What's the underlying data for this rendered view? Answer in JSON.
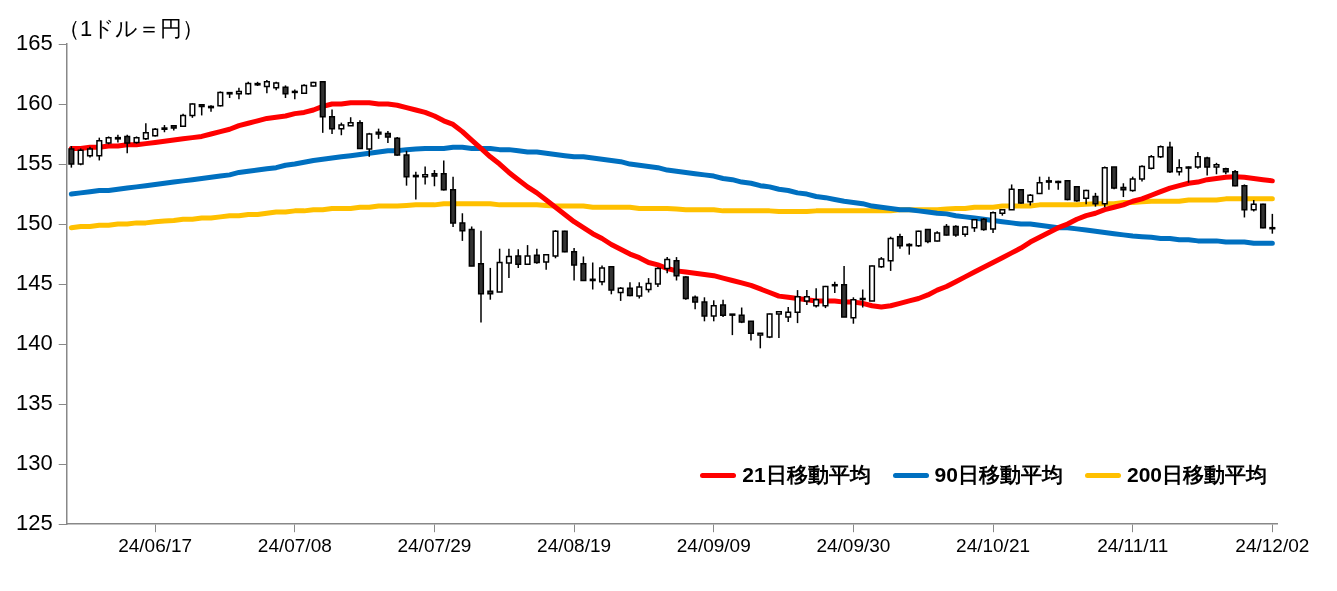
{
  "chart_data": {
    "type": "candlestick",
    "ylabel": "（1ドル＝円）",
    "categories": [
      null,
      null,
      null,
      null,
      null,
      null,
      null,
      null,
      null,
      "24/06/17",
      null,
      null,
      null,
      null,
      null,
      null,
      null,
      null,
      null,
      null,
      null,
      null,
      null,
      null,
      "24/07/08",
      null,
      null,
      null,
      null,
      null,
      null,
      null,
      null,
      null,
      null,
      null,
      null,
      null,
      null,
      "24/07/29",
      null,
      null,
      null,
      null,
      null,
      null,
      null,
      null,
      null,
      null,
      null,
      null,
      null,
      null,
      "24/08/19",
      null,
      null,
      null,
      null,
      null,
      null,
      null,
      null,
      null,
      null,
      null,
      null,
      null,
      null,
      "24/09/09",
      null,
      null,
      null,
      null,
      null,
      null,
      null,
      null,
      null,
      null,
      null,
      null,
      null,
      null,
      "24/09/30",
      null,
      null,
      null,
      null,
      null,
      null,
      null,
      null,
      null,
      null,
      null,
      null,
      null,
      null,
      "24/10/21",
      null,
      null,
      null,
      null,
      null,
      null,
      null,
      null,
      null,
      null,
      null,
      null,
      null,
      null,
      "24/11/11",
      null,
      null,
      null,
      null,
      null,
      null,
      null,
      null,
      null,
      null,
      null,
      null,
      null,
      null,
      "24/12/02"
    ],
    "ohlc": [
      [
        156.25,
        156.5,
        154.7,
        155.0
      ],
      [
        155.0,
        156.3,
        154.9,
        156.15
      ],
      [
        155.7,
        156.45,
        155.55,
        156.25
      ],
      [
        155.7,
        157.2,
        155.3,
        156.95
      ],
      [
        156.75,
        157.3,
        156.65,
        157.2
      ],
      [
        157.1,
        157.45,
        156.8,
        157.2
      ],
      [
        157.3,
        157.45,
        155.9,
        156.75
      ],
      [
        156.8,
        157.3,
        156.7,
        157.2
      ],
      [
        157.1,
        158.4,
        157.0,
        157.6
      ],
      [
        157.35,
        158.0,
        157.3,
        157.9
      ],
      [
        158.0,
        158.25,
        157.65,
        157.9
      ],
      [
        158.2,
        158.25,
        157.8,
        158.0
      ],
      [
        158.15,
        159.2,
        158.1,
        159.05
      ],
      [
        159.05,
        160.05,
        158.85,
        160.0
      ],
      [
        159.95,
        160.0,
        159.05,
        159.8
      ],
      [
        159.8,
        159.9,
        159.35,
        159.7
      ],
      [
        159.85,
        161.05,
        159.8,
        160.95
      ],
      [
        160.95,
        160.95,
        160.5,
        160.85
      ],
      [
        160.85,
        161.35,
        160.4,
        161.05
      ],
      [
        160.85,
        161.85,
        160.8,
        161.7
      ],
      [
        161.6,
        161.85,
        161.5,
        161.7
      ],
      [
        161.45,
        162.0,
        160.9,
        161.85
      ],
      [
        161.35,
        161.85,
        161.15,
        161.75
      ],
      [
        161.4,
        161.55,
        160.5,
        160.85
      ],
      [
        161.0,
        161.2,
        160.4,
        161.05
      ],
      [
        160.9,
        161.65,
        160.85,
        161.55
      ],
      [
        161.5,
        161.85,
        161.45,
        161.8
      ],
      [
        161.85,
        161.85,
        157.6,
        158.95
      ],
      [
        158.95,
        159.55,
        157.5,
        157.95
      ],
      [
        157.95,
        158.45,
        157.4,
        158.25
      ],
      [
        158.2,
        158.9,
        158.2,
        158.45
      ],
      [
        158.45,
        158.65,
        156.25,
        156.3
      ],
      [
        156.25,
        157.6,
        155.6,
        157.5
      ],
      [
        157.65,
        157.95,
        157.1,
        157.5
      ],
      [
        157.55,
        157.75,
        156.75,
        157.25
      ],
      [
        157.15,
        157.25,
        155.7,
        155.75
      ],
      [
        155.75,
        156.1,
        153.2,
        153.95
      ],
      [
        154.05,
        154.35,
        152.05,
        153.95
      ],
      [
        153.95,
        154.8,
        153.3,
        154.1
      ],
      [
        154.2,
        154.5,
        153.15,
        154.0
      ],
      [
        154.2,
        155.3,
        152.8,
        152.85
      ],
      [
        152.85,
        153.95,
        149.75,
        150.1
      ],
      [
        150.1,
        150.9,
        148.6,
        149.45
      ],
      [
        149.55,
        149.8,
        146.5,
        146.5
      ],
      [
        146.7,
        149.45,
        141.8,
        144.2
      ],
      [
        144.4,
        146.35,
        143.7,
        144.2
      ],
      [
        144.35,
        147.95,
        144.35,
        146.8
      ],
      [
        146.75,
        147.95,
        145.5,
        147.3
      ],
      [
        147.35,
        147.9,
        146.35,
        146.65
      ],
      [
        146.65,
        148.25,
        146.6,
        147.35
      ],
      [
        147.4,
        147.95,
        146.7,
        146.8
      ],
      [
        146.85,
        147.5,
        146.2,
        147.45
      ],
      [
        147.35,
        149.5,
        147.15,
        149.4
      ],
      [
        149.4,
        149.45,
        147.65,
        147.7
      ],
      [
        147.7,
        148.0,
        145.3,
        146.6
      ],
      [
        146.7,
        147.3,
        145.3,
        145.3
      ],
      [
        145.4,
        146.8,
        144.55,
        145.3
      ],
      [
        145.2,
        146.55,
        144.9,
        146.35
      ],
      [
        146.45,
        146.5,
        144.15,
        144.5
      ],
      [
        144.3,
        144.75,
        143.6,
        144.65
      ],
      [
        144.65,
        145.15,
        143.98,
        144.05
      ],
      [
        144.0,
        145.15,
        143.8,
        144.75
      ],
      [
        144.55,
        145.5,
        144.3,
        145.05
      ],
      [
        145.0,
        146.4,
        144.75,
        146.3
      ],
      [
        146.3,
        147.25,
        145.9,
        147.05
      ],
      [
        146.95,
        147.25,
        145.3,
        145.7
      ],
      [
        145.6,
        145.65,
        143.7,
        143.8
      ],
      [
        143.9,
        144.05,
        142.9,
        143.5
      ],
      [
        143.5,
        143.9,
        141.9,
        142.35
      ],
      [
        142.35,
        143.65,
        141.9,
        143.2
      ],
      [
        143.25,
        143.7,
        142.25,
        142.4
      ],
      [
        142.5,
        142.5,
        140.75,
        142.45
      ],
      [
        142.4,
        143.05,
        141.75,
        141.85
      ],
      [
        141.9,
        141.9,
        140.3,
        140.9
      ],
      [
        140.75,
        140.9,
        139.65,
        140.9
      ],
      [
        140.6,
        142.55,
        140.5,
        142.5
      ],
      [
        142.5,
        142.7,
        140.5,
        142.7
      ],
      [
        142.25,
        143.1,
        141.85,
        142.65
      ],
      [
        142.65,
        144.5,
        141.75,
        143.95
      ],
      [
        143.6,
        144.5,
        143.25,
        143.95
      ],
      [
        143.2,
        144.65,
        143.05,
        143.7
      ],
      [
        143.2,
        144.85,
        143.0,
        144.8
      ],
      [
        144.9,
        145.2,
        144.25,
        144.95
      ],
      [
        144.95,
        146.5,
        142.25,
        142.25
      ],
      [
        142.2,
        143.9,
        141.7,
        143.7
      ],
      [
        143.75,
        144.55,
        143.05,
        143.8
      ],
      [
        143.6,
        146.55,
        143.6,
        146.5
      ],
      [
        146.45,
        147.25,
        146.35,
        147.1
      ],
      [
        146.95,
        148.95,
        146.1,
        148.8
      ],
      [
        148.95,
        149.2,
        147.95,
        148.2
      ],
      [
        148.3,
        148.4,
        147.45,
        148.2
      ],
      [
        148.2,
        149.45,
        148.1,
        149.4
      ],
      [
        149.55,
        149.6,
        148.4,
        148.55
      ],
      [
        148.6,
        149.4,
        148.55,
        149.25
      ],
      [
        149.8,
        150.0,
        149.05,
        149.1
      ],
      [
        149.8,
        149.9,
        148.95,
        149.1
      ],
      [
        149.15,
        149.85,
        148.95,
        149.75
      ],
      [
        149.7,
        150.4,
        149.35,
        150.35
      ],
      [
        150.4,
        150.5,
        149.45,
        149.55
      ],
      [
        149.6,
        151.05,
        149.25,
        150.95
      ],
      [
        150.9,
        151.25,
        150.7,
        151.2
      ],
      [
        151.2,
        153.3,
        151.2,
        152.9
      ],
      [
        152.85,
        152.85,
        151.7,
        151.75
      ],
      [
        151.85,
        152.5,
        151.55,
        152.4
      ],
      [
        152.55,
        153.95,
        152.5,
        153.45
      ],
      [
        153.5,
        153.95,
        152.85,
        153.6
      ],
      [
        153.55,
        153.6,
        152.85,
        153.5
      ],
      [
        153.6,
        153.65,
        151.98,
        152.05
      ],
      [
        153.1,
        153.15,
        151.85,
        151.95
      ],
      [
        152.15,
        152.85,
        151.65,
        152.8
      ],
      [
        152.3,
        152.6,
        151.45,
        151.7
      ],
      [
        151.7,
        154.8,
        151.4,
        154.7
      ],
      [
        154.75,
        154.75,
        152.9,
        153.0
      ],
      [
        153.05,
        153.4,
        152.25,
        152.85
      ],
      [
        152.8,
        153.95,
        152.7,
        153.75
      ],
      [
        153.75,
        154.9,
        153.55,
        154.8
      ],
      [
        154.65,
        155.75,
        154.55,
        155.6
      ],
      [
        155.6,
        156.55,
        155.5,
        156.45
      ],
      [
        156.4,
        156.85,
        154.25,
        154.35
      ],
      [
        154.35,
        155.4,
        154.05,
        154.7
      ],
      [
        154.75,
        154.8,
        153.45,
        154.7
      ],
      [
        154.75,
        156.0,
        154.6,
        155.6
      ],
      [
        155.5,
        155.6,
        154.05,
        154.75
      ],
      [
        154.75,
        155.1,
        154.15,
        154.95
      ],
      [
        154.6,
        154.7,
        154.15,
        154.35
      ],
      [
        154.35,
        154.5,
        153.15,
        153.2
      ],
      [
        153.2,
        153.3,
        150.55,
        151.2
      ],
      [
        151.2,
        152.0,
        151.05,
        151.65
      ],
      [
        151.65,
        151.7,
        149.65,
        149.7
      ],
      [
        149.7,
        150.85,
        149.2,
        149.65
      ]
    ],
    "series": [
      {
        "name": "21日移動平均",
        "type": "line",
        "color": "#ff0000",
        "values": [
          156.3,
          156.3,
          156.4,
          156.4,
          156.5,
          156.5,
          156.6,
          156.6,
          156.7,
          156.8,
          156.9,
          157.0,
          157.1,
          157.2,
          157.3,
          157.5,
          157.7,
          157.9,
          158.2,
          158.4,
          158.6,
          158.8,
          158.9,
          159.0,
          159.2,
          159.3,
          159.5,
          159.8,
          160.0,
          160.0,
          160.1,
          160.1,
          160.1,
          160.0,
          160.0,
          159.9,
          159.7,
          159.5,
          159.3,
          159.0,
          158.6,
          158.3,
          157.7,
          157.0,
          156.3,
          155.6,
          155.0,
          154.3,
          153.7,
          153.1,
          152.6,
          152.0,
          151.4,
          150.8,
          150.2,
          149.7,
          149.2,
          148.8,
          148.3,
          147.9,
          147.5,
          147.2,
          146.8,
          146.6,
          146.3,
          146.1,
          146.0,
          145.9,
          145.8,
          145.7,
          145.5,
          145.3,
          145.1,
          144.9,
          144.6,
          144.3,
          144.0,
          143.9,
          143.8,
          143.7,
          143.6,
          143.6,
          143.6,
          143.5,
          143.5,
          143.4,
          143.2,
          143.1,
          143.2,
          143.4,
          143.6,
          143.8,
          144.1,
          144.5,
          144.8,
          145.2,
          145.6,
          146.0,
          146.4,
          146.8,
          147.2,
          147.6,
          148.0,
          148.5,
          148.9,
          149.3,
          149.7,
          150.0,
          150.4,
          150.7,
          150.9,
          151.2,
          151.4,
          151.6,
          151.9,
          152.1,
          152.4,
          152.7,
          153.0,
          153.2,
          153.4,
          153.5,
          153.7,
          153.8,
          153.9,
          153.95,
          153.9,
          153.8,
          153.7,
          153.6
        ]
      },
      {
        "name": "90日移動平均",
        "type": "line",
        "color": "#0070c0",
        "values": [
          152.5,
          152.6,
          152.7,
          152.8,
          152.8,
          152.9,
          153.0,
          153.1,
          153.2,
          153.3,
          153.4,
          153.5,
          153.6,
          153.7,
          153.8,
          153.9,
          154.0,
          154.1,
          154.3,
          154.4,
          154.5,
          154.6,
          154.7,
          154.9,
          155.0,
          155.15,
          155.3,
          155.4,
          155.5,
          155.6,
          155.7,
          155.8,
          155.9,
          156.0,
          156.1,
          156.1,
          156.2,
          156.25,
          156.3,
          156.3,
          156.3,
          156.4,
          156.4,
          156.3,
          156.3,
          156.3,
          156.2,
          156.2,
          156.1,
          156.0,
          156.0,
          155.9,
          155.8,
          155.7,
          155.6,
          155.6,
          155.5,
          155.4,
          155.3,
          155.2,
          155.0,
          154.9,
          154.8,
          154.7,
          154.5,
          154.4,
          154.3,
          154.2,
          154.1,
          154.0,
          153.8,
          153.7,
          153.5,
          153.4,
          153.2,
          153.1,
          152.9,
          152.8,
          152.6,
          152.5,
          152.3,
          152.2,
          152.05,
          151.9,
          151.8,
          151.7,
          151.5,
          151.4,
          151.3,
          151.2,
          151.2,
          151.1,
          151.0,
          150.9,
          150.85,
          150.7,
          150.6,
          150.5,
          150.4,
          150.3,
          150.2,
          150.1,
          150.0,
          150.0,
          149.9,
          149.8,
          149.7,
          149.7,
          149.6,
          149.5,
          149.4,
          149.3,
          149.2,
          149.1,
          149.0,
          148.95,
          148.9,
          148.8,
          148.8,
          148.7,
          148.7,
          148.6,
          148.6,
          148.6,
          148.5,
          148.5,
          148.5,
          148.4,
          148.4,
          148.4
        ]
      },
      {
        "name": "200日移動平均",
        "type": "line",
        "color": "#ffc000",
        "values": [
          149.7,
          149.8,
          149.8,
          149.9,
          149.9,
          150.0,
          150.0,
          150.1,
          150.1,
          150.2,
          150.25,
          150.3,
          150.4,
          150.4,
          150.5,
          150.5,
          150.6,
          150.7,
          150.7,
          150.8,
          150.8,
          150.9,
          151.0,
          151.0,
          151.1,
          151.1,
          151.2,
          151.2,
          151.3,
          151.3,
          151.3,
          151.4,
          151.4,
          151.5,
          151.5,
          151.5,
          151.55,
          151.6,
          151.6,
          151.6,
          151.7,
          151.7,
          151.7,
          151.7,
          151.7,
          151.7,
          151.6,
          151.6,
          151.6,
          151.6,
          151.6,
          151.55,
          151.5,
          151.5,
          151.5,
          151.5,
          151.4,
          151.4,
          151.4,
          151.4,
          151.4,
          151.3,
          151.3,
          151.3,
          151.3,
          151.25,
          151.2,
          151.2,
          151.2,
          151.2,
          151.1,
          151.1,
          151.1,
          151.1,
          151.1,
          151.1,
          151.05,
          151.05,
          151.05,
          151.05,
          151.1,
          151.1,
          151.1,
          151.1,
          151.1,
          151.1,
          151.1,
          151.1,
          151.1,
          151.2,
          151.2,
          151.2,
          151.2,
          151.2,
          151.25,
          151.3,
          151.3,
          151.4,
          151.4,
          151.4,
          151.5,
          151.5,
          151.5,
          151.5,
          151.6,
          151.6,
          151.6,
          151.6,
          151.6,
          151.65,
          151.7,
          151.7,
          151.7,
          151.8,
          151.8,
          151.85,
          151.9,
          151.9,
          151.9,
          151.9,
          152.0,
          152.0,
          152.0,
          152.0,
          152.1,
          152.1,
          152.1,
          152.1,
          152.1,
          152.1
        ]
      }
    ],
    "ylim": [
      125,
      165
    ],
    "yticks": [
      125,
      130,
      135,
      140,
      145,
      150,
      155,
      160,
      165
    ],
    "grid": false,
    "legend": "bottom right"
  }
}
